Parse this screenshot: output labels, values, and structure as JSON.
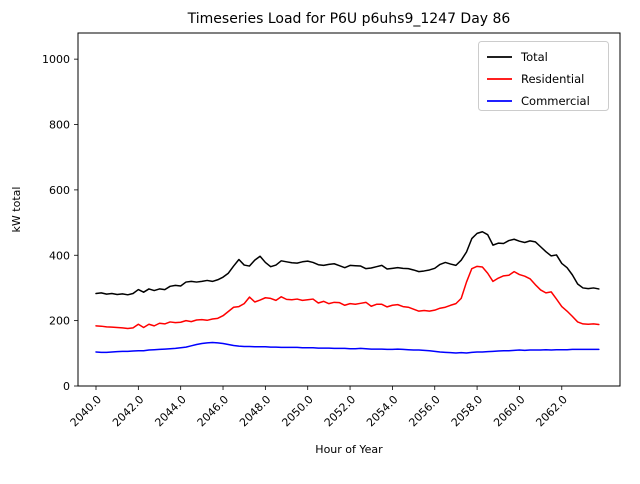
{
  "chart_data": {
    "type": "line",
    "title": "Timeseries Load for P6U p6uhs9_1247  Day 86",
    "xlabel": "Hour of Year",
    "ylabel": "kW total",
    "xlim": [
      2039.15,
      2064.75
    ],
    "ylim": [
      0,
      1080
    ],
    "grid": false,
    "legend_position": "upper right",
    "x_tick_values": [
      2040,
      2042,
      2044,
      2046,
      2048,
      2050,
      2052,
      2054,
      2056,
      2058,
      2060,
      2062
    ],
    "x_tick_labels": [
      "2040.0",
      "2042.0",
      "2044.0",
      "2046.0",
      "2048.0",
      "2050.0",
      "2052.0",
      "2054.0",
      "2056.0",
      "2058.0",
      "2060.0",
      "2062.0"
    ],
    "y_tick_values": [
      0,
      200,
      400,
      600,
      800,
      1000
    ],
    "y_tick_labels": [
      "0",
      "200",
      "400",
      "600",
      "800",
      "1000"
    ],
    "x_start": 2040.0,
    "x_step": 0.25,
    "series": [
      {
        "name": "Total",
        "color": "#000000",
        "values": [
          283,
          285,
          281,
          283,
          280,
          282,
          279,
          283,
          295,
          287,
          297,
          292,
          297,
          295,
          305,
          308,
          306,
          318,
          320,
          318,
          320,
          323,
          320,
          325,
          333,
          345,
          367,
          387,
          370,
          367,
          385,
          397,
          378,
          365,
          370,
          383,
          380,
          377,
          376,
          380,
          382,
          378,
          371,
          369,
          372,
          374,
          368,
          362,
          369,
          368,
          367,
          359,
          361,
          365,
          369,
          358,
          360,
          362,
          360,
          359,
          355,
          350,
          352,
          355,
          360,
          372,
          378,
          373,
          369,
          385,
          410,
          451,
          467,
          472,
          463,
          431,
          437,
          436,
          445,
          449,
          443,
          439,
          444,
          441,
          426,
          411,
          398,
          401,
          375,
          362,
          340,
          312,
          300,
          298,
          300,
          297
        ]
      },
      {
        "name": "Residential",
        "color": "#ff0000",
        "values": [
          184,
          183,
          181,
          180,
          179,
          178,
          176,
          178,
          189,
          179,
          189,
          184,
          192,
          190,
          196,
          194,
          195,
          200,
          197,
          202,
          203,
          201,
          205,
          207,
          215,
          228,
          241,
          243,
          252,
          272,
          257,
          263,
          270,
          268,
          262,
          273,
          265,
          264,
          266,
          262,
          264,
          266,
          254,
          259,
          252,
          256,
          255,
          247,
          252,
          250,
          253,
          256,
          244,
          250,
          250,
          242,
          247,
          249,
          243,
          241,
          235,
          229,
          231,
          229,
          232,
          238,
          241,
          247,
          252,
          268,
          318,
          359,
          366,
          364,
          345,
          320,
          330,
          337,
          339,
          350,
          341,
          336,
          328,
          310,
          294,
          285,
          288,
          266,
          243,
          229,
          213,
          196,
          190,
          189,
          190,
          188
        ]
      },
      {
        "name": "Commercial",
        "color": "#0000ff",
        "values": [
          104,
          103,
          103,
          104,
          105,
          106,
          106,
          107,
          108,
          108,
          110,
          111,
          112,
          113,
          114,
          115,
          117,
          119,
          123,
          127,
          130,
          132,
          133,
          132,
          130,
          127,
          124,
          122,
          121,
          121,
          120,
          120,
          120,
          119,
          119,
          118,
          118,
          118,
          118,
          117,
          117,
          117,
          116,
          116,
          116,
          115,
          115,
          115,
          114,
          114,
          115,
          114,
          113,
          113,
          113,
          112,
          112,
          113,
          112,
          111,
          110,
          110,
          109,
          108,
          106,
          104,
          103,
          102,
          101,
          102,
          101,
          103,
          104,
          104,
          105,
          106,
          107,
          108,
          108,
          109,
          110,
          109,
          110,
          110,
          110,
          111,
          110,
          111,
          111,
          111,
          112,
          112,
          112,
          112,
          112,
          112
        ]
      }
    ]
  }
}
